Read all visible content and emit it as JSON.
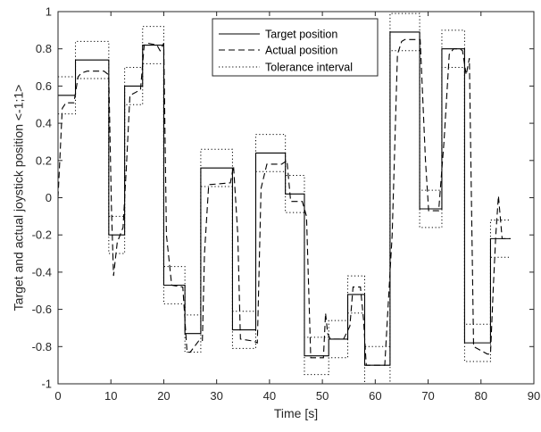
{
  "chart_data": {
    "type": "line",
    "title": "",
    "xlabel": "Time [s]",
    "ylabel": "Target and actual joystick position <-1;1>",
    "xlim": [
      0,
      90
    ],
    "ylim": [
      -1,
      1
    ],
    "xticks": [
      0,
      10,
      20,
      30,
      40,
      50,
      60,
      70,
      80,
      90
    ],
    "yticks": [
      -1,
      -0.8,
      -0.6,
      -0.4,
      -0.2,
      0,
      0.2,
      0.4,
      0.6,
      0.8,
      1
    ],
    "xtick_labels": [
      "0",
      "10",
      "20",
      "30",
      "40",
      "50",
      "60",
      "70",
      "80",
      "90"
    ],
    "ytick_labels": [
      "-1",
      "-0.8",
      "-0.6",
      "-0.4",
      "-0.2",
      "0",
      "0.2",
      "0.4",
      "0.6",
      "0.8",
      "1"
    ],
    "tolerance": 0.1,
    "legend_position": "top-right",
    "grid": false,
    "series": [
      {
        "name": "Target position",
        "style": "solid",
        "color": "#000000",
        "x": [
          0,
          3.3,
          3.3,
          9.6,
          9.6,
          12.6,
          12.6,
          16.0,
          16.0,
          20.0,
          20.0,
          24.0,
          24.0,
          27.0,
          27.0,
          33.0,
          33.0,
          37.4,
          37.4,
          43.0,
          43.0,
          46.6,
          46.6,
          51.2,
          51.2,
          54.8,
          54.8,
          58.0,
          58.0,
          62.8,
          62.8,
          68.4,
          68.4,
          72.6,
          72.6,
          76.9,
          76.9,
          81.8,
          81.8,
          85.6
        ],
        "y": [
          0.55,
          0.55,
          0.74,
          0.74,
          -0.2,
          -0.2,
          0.6,
          0.6,
          0.82,
          0.82,
          -0.47,
          -0.47,
          -0.73,
          -0.73,
          0.16,
          0.16,
          -0.71,
          -0.71,
          0.24,
          0.24,
          0.02,
          0.02,
          -0.85,
          -0.85,
          -0.76,
          -0.76,
          -0.52,
          -0.52,
          -0.9,
          -0.9,
          0.89,
          0.89,
          -0.06,
          -0.06,
          0.8,
          0.8,
          -0.78,
          -0.78,
          -0.22,
          -0.22
        ]
      },
      {
        "name": "Actual position",
        "style": "dashed",
        "color": "#000000",
        "x": [
          0,
          0.8,
          1.5,
          3.0,
          3.8,
          4.4,
          5.5,
          8.7,
          9.6,
          10.1,
          10.5,
          11.2,
          12.3,
          12.9,
          13.6,
          15.6,
          16.3,
          17.0,
          18.7,
          19.3,
          20.0,
          20.5,
          21.5,
          23.6,
          24.4,
          25.0,
          26.6,
          27.3,
          27.7,
          28.5,
          32.6,
          33.2,
          34.0,
          34.5,
          36.9,
          37.7,
          38.4,
          39.5,
          42.3,
          43.3,
          44.0,
          46.2,
          47.0,
          47.8,
          50.2,
          50.6,
          51.0,
          51.5,
          54.0,
          55.2,
          55.8,
          57.2,
          57.8,
          58.3,
          58.8,
          61.8,
          63.2,
          64.2,
          65.0,
          65.6,
          67.8,
          68.5,
          69.5,
          70.1,
          70.6,
          72.0,
          73.0,
          74.0,
          74.8,
          76.0,
          76.5,
          77.2,
          77.8,
          78.6,
          81.2,
          81.8,
          82.3,
          82.8,
          83.3,
          84.0,
          85.6
        ],
        "y": [
          0.0,
          0.48,
          0.51,
          0.51,
          0.65,
          0.67,
          0.68,
          0.68,
          0.66,
          -0.05,
          -0.42,
          -0.24,
          -0.16,
          0.15,
          0.55,
          0.58,
          0.82,
          0.83,
          0.82,
          0.79,
          0.83,
          -0.2,
          -0.47,
          -0.48,
          -0.83,
          -0.83,
          -0.77,
          -0.77,
          -0.3,
          0.07,
          0.08,
          0.17,
          -0.2,
          -0.76,
          -0.77,
          -0.78,
          0.05,
          0.18,
          0.18,
          0.2,
          -0.02,
          -0.02,
          -0.1,
          -0.86,
          -0.86,
          -0.62,
          -0.73,
          -0.76,
          -0.76,
          -0.69,
          -0.48,
          -0.48,
          -0.66,
          -0.9,
          -0.9,
          -0.9,
          -0.2,
          0.77,
          0.84,
          0.85,
          0.85,
          0.85,
          0.2,
          -0.07,
          -0.07,
          -0.07,
          0.3,
          0.77,
          0.8,
          0.8,
          0.79,
          0.66,
          0.75,
          -0.8,
          -0.84,
          -0.84,
          -0.5,
          -0.2,
          0.01,
          -0.22,
          -0.22
        ]
      }
    ]
  }
}
